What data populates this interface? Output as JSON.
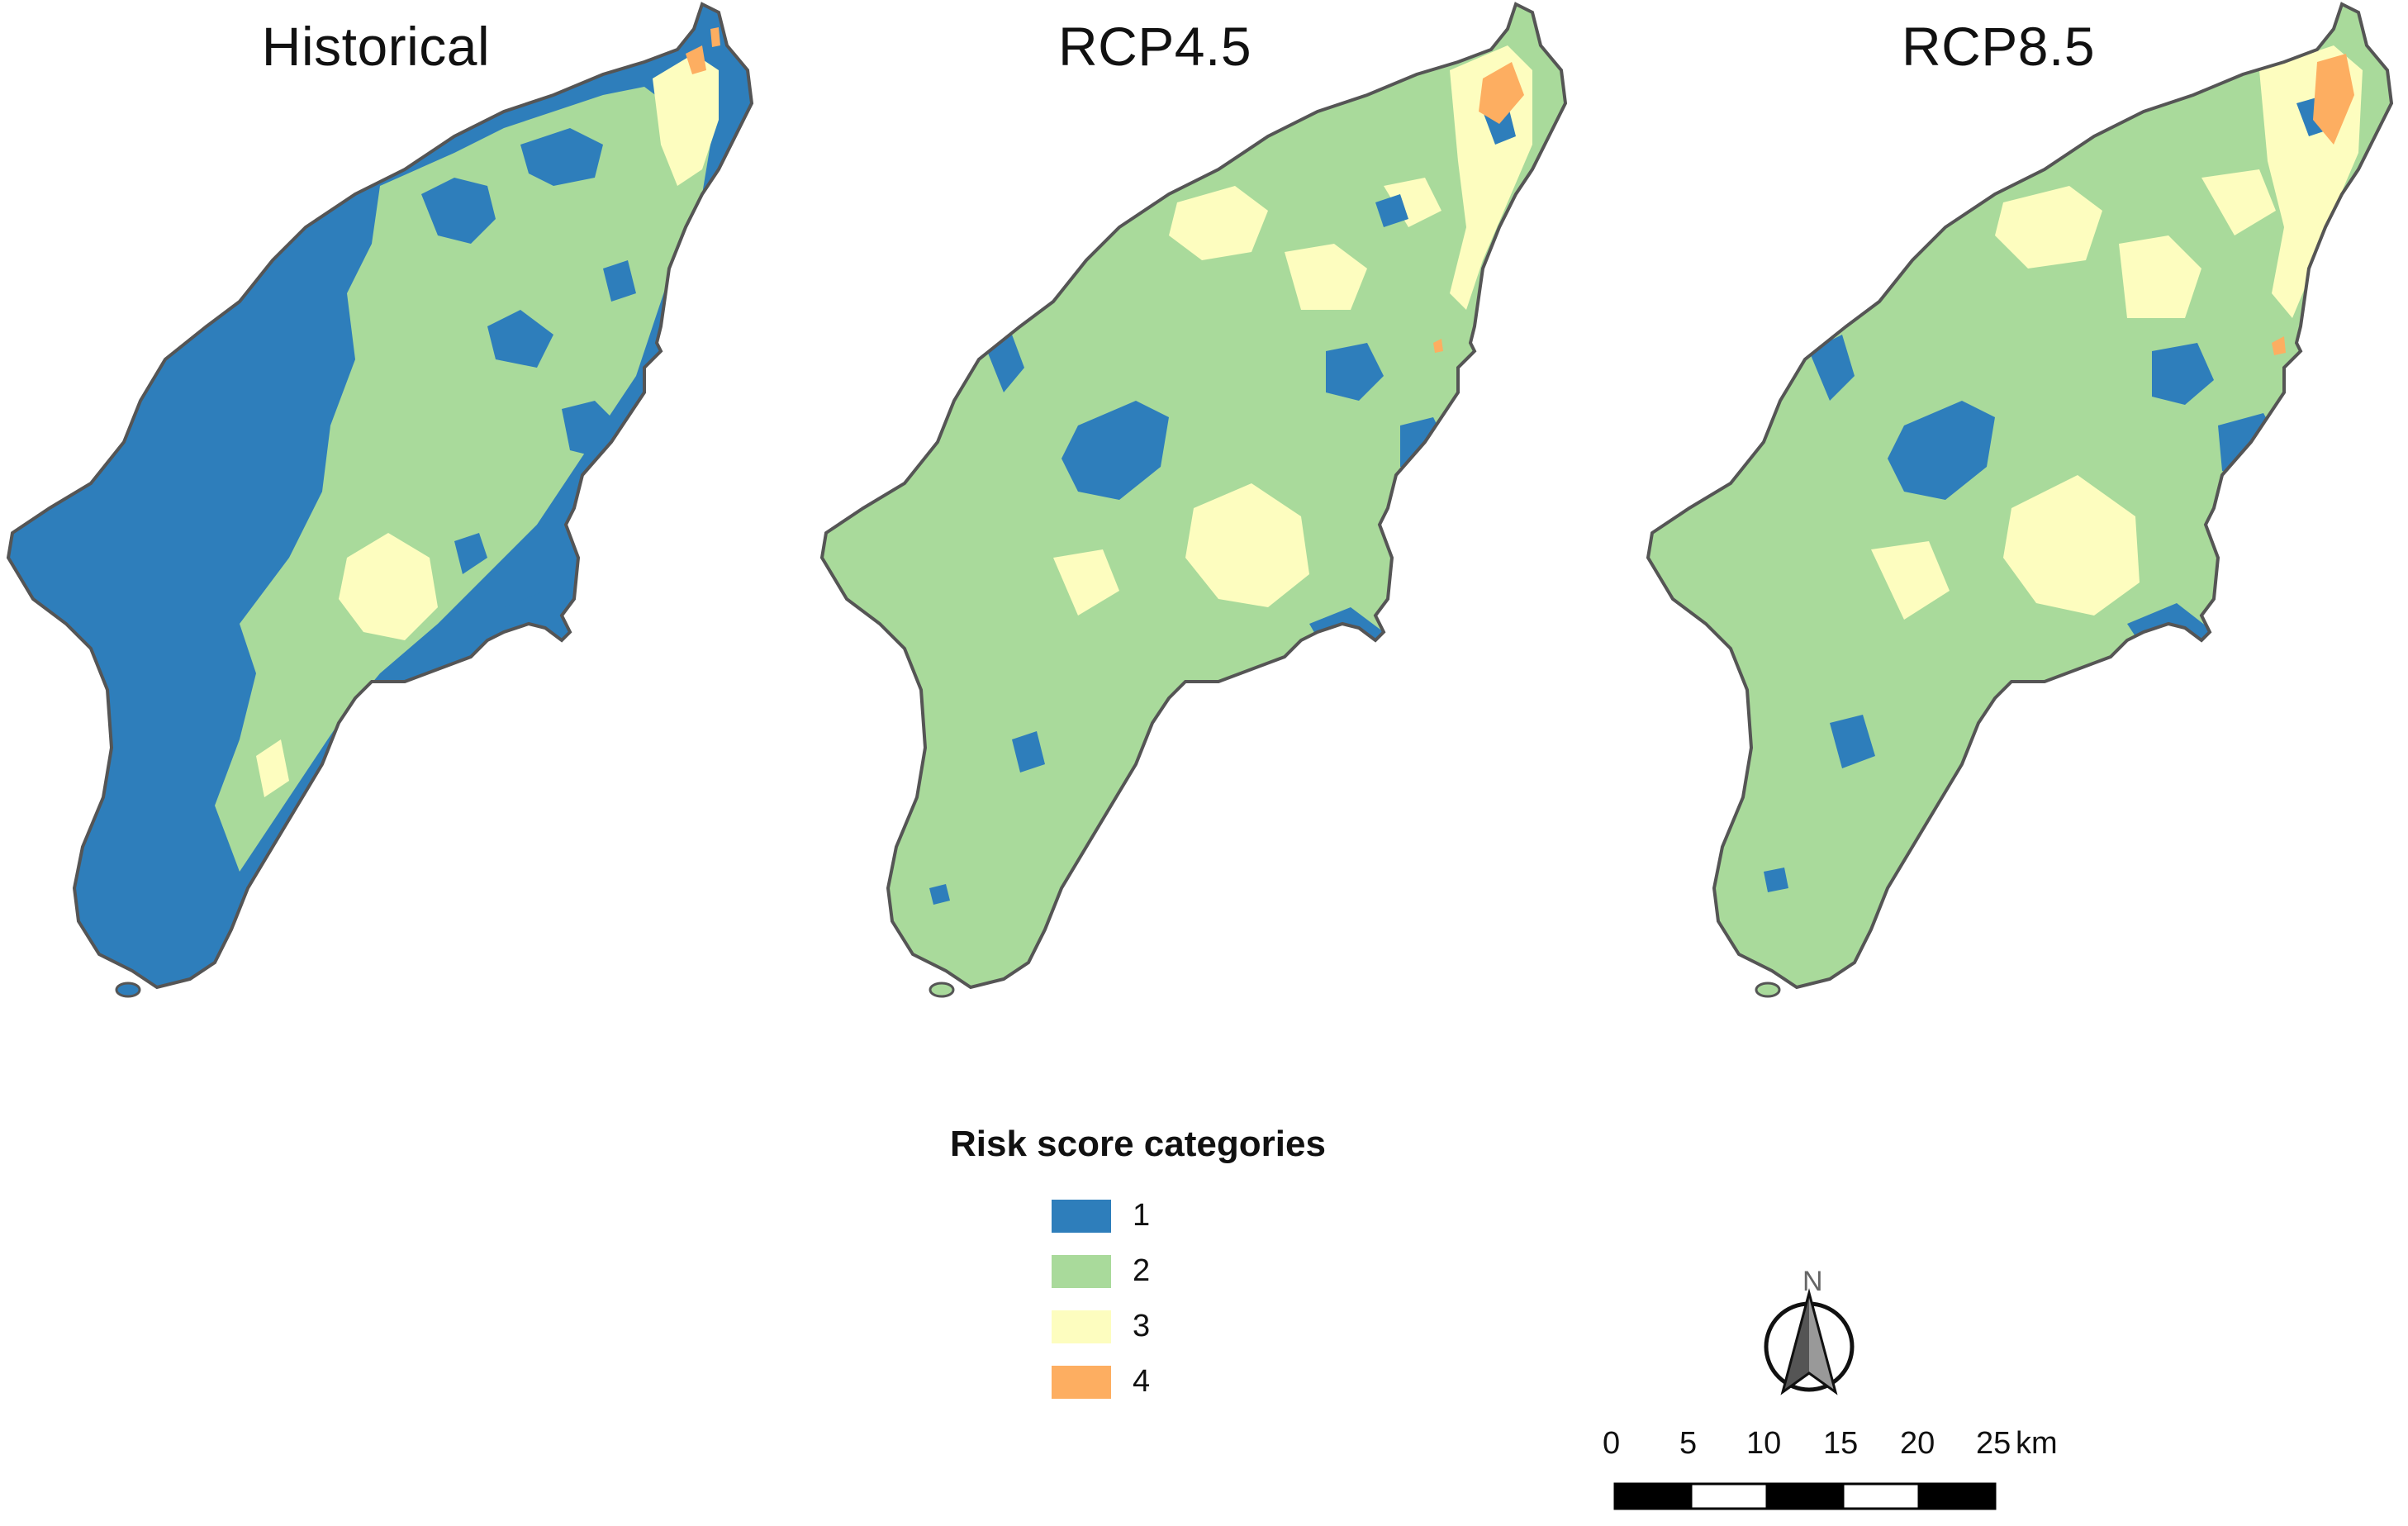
{
  "panels": [
    {
      "title": "Historical",
      "scenario": "historical"
    },
    {
      "title": "RCP4.5",
      "scenario": "rcp45"
    },
    {
      "title": "RCP8.5",
      "scenario": "rcp85"
    }
  ],
  "legend": {
    "title": "Risk score categories",
    "items": [
      {
        "label": "1",
        "color": "#2E7EBB"
      },
      {
        "label": "2",
        "color": "#A9DA9B"
      },
      {
        "label": "3",
        "color": "#FDFDBF"
      },
      {
        "label": "4",
        "color": "#FDAE61"
      }
    ]
  },
  "north_arrow": {
    "label": "N"
  },
  "scale_bar": {
    "ticks": [
      "0",
      "5",
      "10",
      "15",
      "20",
      "25"
    ],
    "unit": "km"
  },
  "colors": {
    "coast": "#555555",
    "cat1": "#2E7EBB",
    "cat2": "#A9DA9B",
    "cat3": "#FDFDBF",
    "cat4": "#FDAE61"
  }
}
